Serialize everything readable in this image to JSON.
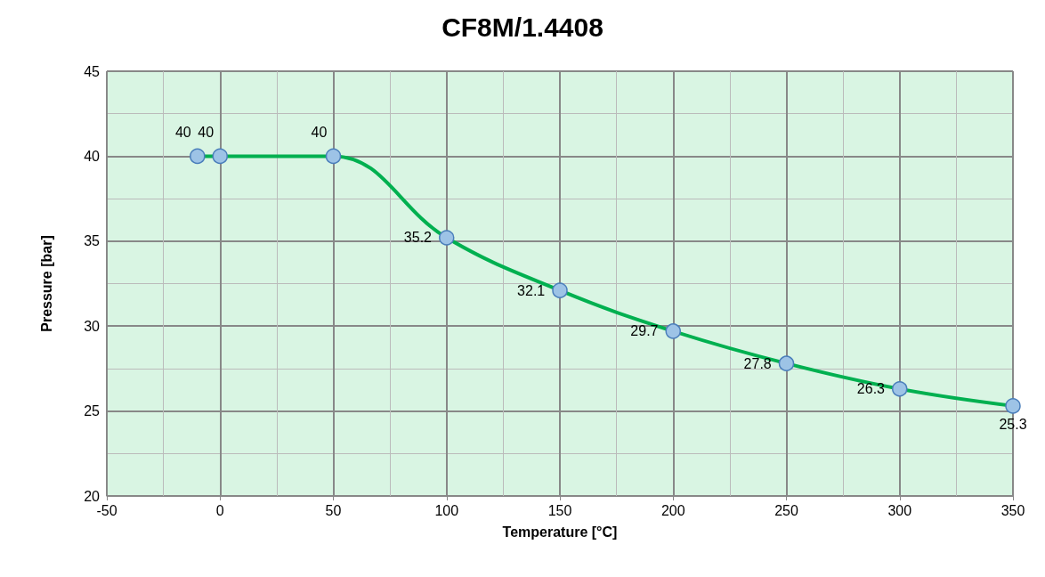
{
  "chart_data": {
    "type": "line",
    "title": "CF8M/1.4408",
    "xlabel": "Temperature [°C]",
    "ylabel": "Pressure [bar]",
    "x": [
      -10,
      0,
      50,
      100,
      150,
      200,
      250,
      300,
      350
    ],
    "series": [
      {
        "color": "#00b050",
        "values": [
          40,
          40,
          40,
          35.2,
          32.1,
          29.7,
          27.8,
          26.3,
          25.3
        ]
      }
    ],
    "xlim": [
      -50,
      350
    ],
    "xticks": [
      -50,
      0,
      50,
      100,
      150,
      200,
      250,
      300,
      350
    ],
    "ylim": [
      20,
      45
    ],
    "yticks": [
      20,
      25,
      30,
      35,
      40,
      45
    ],
    "grid": true,
    "marker": "circle",
    "line_style": "solid",
    "data_labels": true
  }
}
